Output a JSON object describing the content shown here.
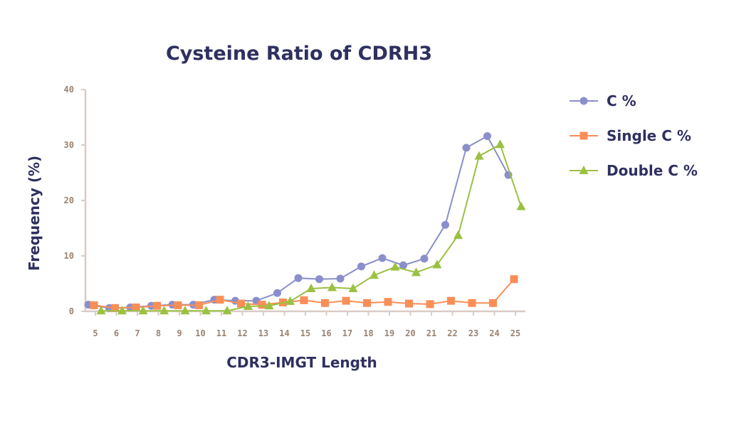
{
  "chart_data": {
    "type": "line",
    "title": "Cysteine Ratio of CDRH3",
    "xlabel": "CDR3-IMGT Length",
    "ylabel": "Frequency (%)",
    "ylim": [
      0,
      40
    ],
    "yticks": [
      "0",
      "10",
      "20",
      "30",
      "40"
    ],
    "categories": [
      "5",
      "6",
      "7",
      "8",
      "9",
      "10",
      "11",
      "12",
      "13",
      "14",
      "15",
      "16",
      "17",
      "18",
      "19",
      "20",
      "21",
      "22",
      "23",
      "24",
      "25"
    ],
    "legend_position": "right",
    "series": [
      {
        "name": "C %",
        "color": "#8a8fcb",
        "marker": "circle",
        "values": [
          1.2,
          0.6,
          0.7,
          1.0,
          1.2,
          1.2,
          2.1,
          1.9,
          1.9,
          3.3,
          6.0,
          5.8,
          5.9,
          8.1,
          9.6,
          8.3,
          9.5,
          15.6,
          29.5,
          31.6,
          24.6
        ]
      },
      {
        "name": "Single C %",
        "color": "#f98e57",
        "marker": "square",
        "values": [
          1.1,
          0.6,
          0.7,
          1.0,
          1.1,
          1.1,
          2.1,
          1.4,
          1.2,
          1.6,
          2.0,
          1.5,
          1.9,
          1.5,
          1.7,
          1.4,
          1.3,
          1.9,
          1.5,
          1.5,
          5.8
        ]
      },
      {
        "name": "Double C %",
        "color": "#9ac142",
        "marker": "triangle",
        "values": [
          0.1,
          0.1,
          0.1,
          0.1,
          0.1,
          0.1,
          0.1,
          0.9,
          1.0,
          1.8,
          4.1,
          4.3,
          4.1,
          6.5,
          8.0,
          7.0,
          8.4,
          13.7,
          28.0,
          30.1,
          18.9
        ]
      }
    ]
  },
  "colors": {
    "title": "#2e3060",
    "tick_label": "#9a8372",
    "axis_line": "#d9ccc4"
  }
}
